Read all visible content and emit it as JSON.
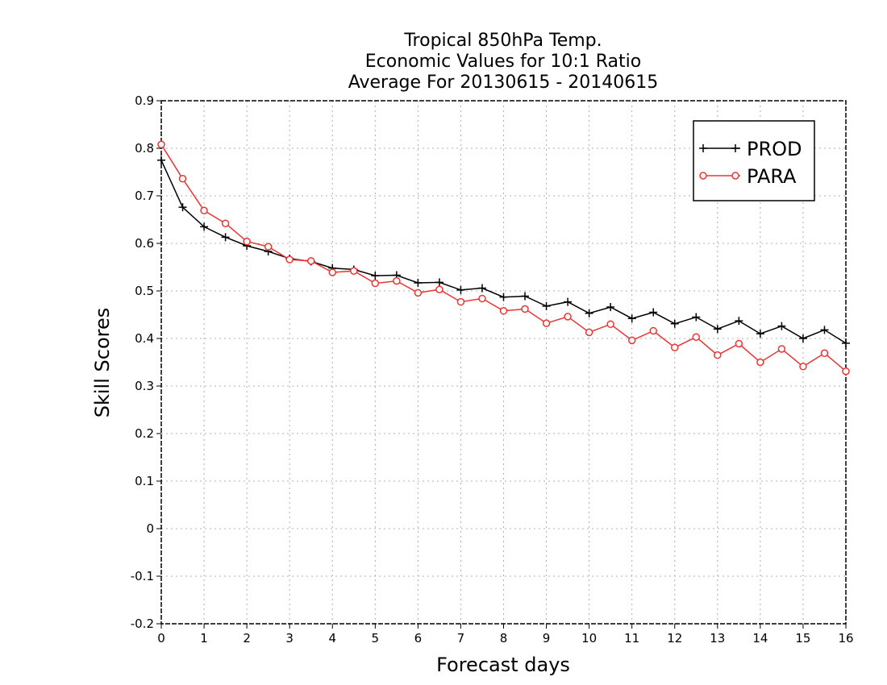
{
  "chart_data": {
    "type": "line",
    "title": [
      "Tropical 850hPa Temp.",
      "Economic Values for 10:1 Ratio",
      "Average For 20130615 - 20140615"
    ],
    "xlabel": "Forecast days",
    "ylabel": "Skill Scores",
    "xlim": [
      0,
      16
    ],
    "ylim": [
      -0.2,
      0.9
    ],
    "xticks": [
      "0",
      "1",
      "2",
      "3",
      "4",
      "5",
      "6",
      "7",
      "8",
      "9",
      "10",
      "11",
      "12",
      "13",
      "14",
      "15",
      "16"
    ],
    "yticks": [
      "-0.2",
      "-0.1",
      "0",
      "0.1",
      "0.2",
      "0.3",
      "0.4",
      "0.5",
      "0.6",
      "0.7",
      "0.8",
      "0.9"
    ],
    "grid": true,
    "legend_position": "top-right",
    "x": [
      0,
      0.5,
      1,
      1.5,
      2,
      2.5,
      3,
      3.5,
      4,
      4.5,
      5,
      5.5,
      6,
      6.5,
      7,
      7.5,
      8,
      8.5,
      9,
      9.5,
      10,
      10.5,
      11,
      11.5,
      12,
      12.5,
      13,
      13.5,
      14,
      14.5,
      15,
      15.5,
      16
    ],
    "series": [
      {
        "name": "PROD",
        "color": "#000000",
        "marker": "plus",
        "values": [
          0.775,
          0.676,
          0.635,
          0.613,
          0.595,
          0.583,
          0.568,
          0.562,
          0.548,
          0.545,
          0.532,
          0.533,
          0.517,
          0.518,
          0.502,
          0.506,
          0.487,
          0.489,
          0.468,
          0.477,
          0.453,
          0.466,
          0.442,
          0.455,
          0.431,
          0.445,
          0.42,
          0.437,
          0.41,
          0.426,
          0.4,
          0.418,
          0.39
        ]
      },
      {
        "name": "PARA",
        "color": "#ee3333",
        "marker": "circle",
        "values": [
          0.808,
          0.736,
          0.669,
          0.642,
          0.604,
          0.593,
          0.566,
          0.563,
          0.539,
          0.542,
          0.516,
          0.521,
          0.496,
          0.503,
          0.477,
          0.484,
          0.458,
          0.462,
          0.432,
          0.446,
          0.413,
          0.43,
          0.396,
          0.416,
          0.381,
          0.403,
          0.365,
          0.389,
          0.35,
          0.378,
          0.341,
          0.369,
          0.331
        ]
      }
    ]
  }
}
